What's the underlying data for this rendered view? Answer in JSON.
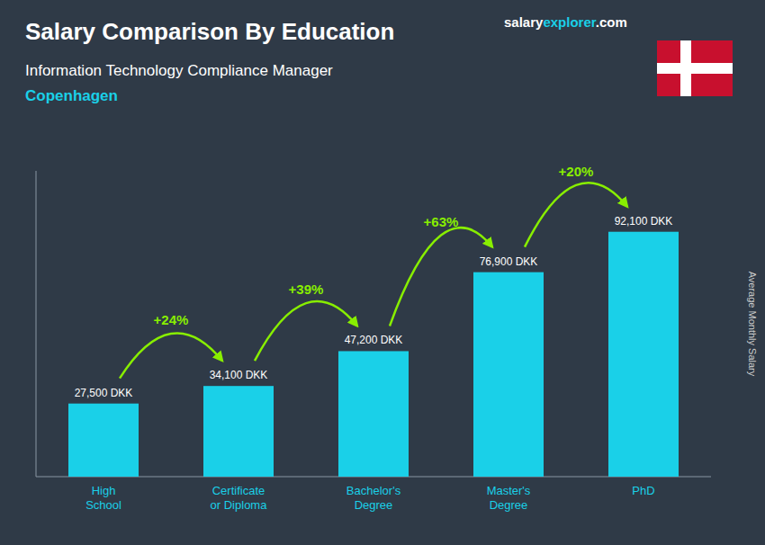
{
  "chart_data": {
    "type": "bar",
    "title": "Salary Comparison By Education",
    "subtitle": "Information Technology Compliance Manager",
    "location": "Copenhagen",
    "ylabel": "Average Monthly Salary",
    "categories": [
      "High\nSchool",
      "Certificate\nor Diploma",
      "Bachelor's\nDegree",
      "Master's\nDegree",
      "PhD"
    ],
    "values": [
      27500,
      34100,
      47200,
      76900,
      92100
    ],
    "value_labels": [
      "27,500 DKK",
      "34,100 DKK",
      "47,200 DKK",
      "76,900 DKK",
      "92,100 DKK"
    ],
    "data_labels": true,
    "color": "#1ad0e8",
    "ylim": [
      0,
      115000
    ],
    "tick_labels": "x",
    "grid": false,
    "annotations": [
      {
        "text": "+24%",
        "color": "#88ee00"
      },
      {
        "text": "+39%",
        "color": "#88ee00"
      },
      {
        "text": "+63%",
        "color": "#88ee00"
      },
      {
        "text": "+20%",
        "color": "#88ee00"
      }
    ],
    "watermark": [
      {
        "text": "salary",
        "color": "#ffffff"
      },
      {
        "text": "explorer",
        "color": "#1ad0e8"
      },
      {
        "text": ".com",
        "color": "#ffffff"
      }
    ]
  }
}
